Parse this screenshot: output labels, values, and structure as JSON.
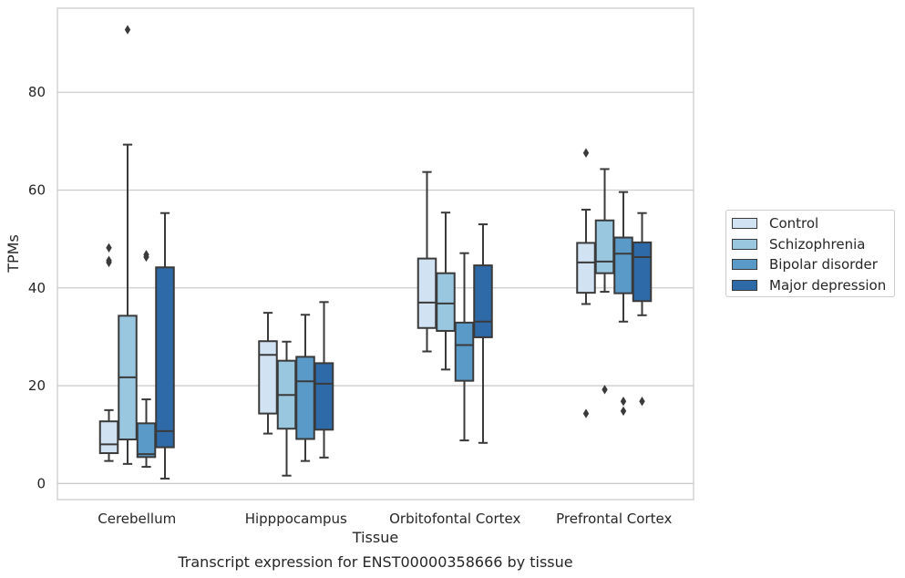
{
  "chart_data": {
    "type": "box",
    "title": "Transcript expression for ENST00000358666 by tissue",
    "xlabel": "Tissue",
    "ylabel": "TPMs",
    "ylim": [
      -3.3,
      97.2
    ],
    "yticks": [
      0,
      20,
      40,
      60,
      80
    ],
    "grid": true,
    "legend_position": "right",
    "categories": [
      "Cerebellum",
      "Hipppocampus",
      "Orbitofontal Cortex",
      "Prefrontal Cortex"
    ],
    "series": [
      {
        "name": "Control",
        "color": "#d1e2f2",
        "boxes": [
          {
            "low": 4.6,
            "q1": 6.2,
            "median": 8.0,
            "q3": 12.7,
            "high": 15.0,
            "outliers": [
              45.2,
              45.6,
              48.2
            ]
          },
          {
            "low": 10.2,
            "q1": 14.3,
            "median": 26.3,
            "q3": 29.1,
            "high": 34.9,
            "outliers": []
          },
          {
            "low": 27.0,
            "q1": 31.8,
            "median": 37.0,
            "q3": 46.0,
            "high": 63.7,
            "outliers": []
          },
          {
            "low": 36.7,
            "q1": 39.0,
            "median": 45.2,
            "q3": 49.2,
            "high": 56.0,
            "outliers": [
              14.3,
              67.6
            ]
          }
        ]
      },
      {
        "name": "Schizophrenia",
        "color": "#9ac7e0",
        "boxes": [
          {
            "low": 4.0,
            "q1": 9.0,
            "median": 21.7,
            "q3": 34.3,
            "high": 69.3,
            "outliers": [
              92.8
            ]
          },
          {
            "low": 1.6,
            "q1": 11.2,
            "median": 18.1,
            "q3": 25.1,
            "high": 29.0,
            "outliers": []
          },
          {
            "low": 23.3,
            "q1": 31.2,
            "median": 36.8,
            "q3": 43.0,
            "high": 55.4,
            "outliers": []
          },
          {
            "low": 39.2,
            "q1": 43.0,
            "median": 45.4,
            "q3": 53.8,
            "high": 64.3,
            "outliers": [
              19.2
            ]
          }
        ]
      },
      {
        "name": "Bipolar disorder",
        "color": "#5a9ac8",
        "boxes": [
          {
            "low": 3.4,
            "q1": 5.4,
            "median": 6.0,
            "q3": 12.3,
            "high": 17.2,
            "outliers": [
              46.3,
              46.8
            ]
          },
          {
            "low": 4.6,
            "q1": 9.1,
            "median": 20.9,
            "q3": 25.9,
            "high": 34.5,
            "outliers": []
          },
          {
            "low": 8.8,
            "q1": 21.0,
            "median": 28.3,
            "q3": 32.9,
            "high": 47.1,
            "outliers": []
          },
          {
            "low": 33.1,
            "q1": 38.9,
            "median": 47.0,
            "q3": 50.3,
            "high": 59.6,
            "outliers": [
              14.8,
              16.8
            ]
          }
        ]
      },
      {
        "name": "Major depression",
        "color": "#2f6aa8",
        "boxes": [
          {
            "low": 1.0,
            "q1": 7.4,
            "median": 10.7,
            "q3": 44.2,
            "high": 55.3,
            "outliers": []
          },
          {
            "low": 5.3,
            "q1": 11.0,
            "median": 20.4,
            "q3": 24.6,
            "high": 37.1,
            "outliers": []
          },
          {
            "low": 8.3,
            "q1": 29.9,
            "median": 33.1,
            "q3": 44.6,
            "high": 53.0,
            "outliers": []
          },
          {
            "low": 34.4,
            "q1": 37.3,
            "median": 46.3,
            "q3": 49.3,
            "high": 55.3,
            "outliers": [
              16.8
            ]
          }
        ]
      }
    ]
  }
}
